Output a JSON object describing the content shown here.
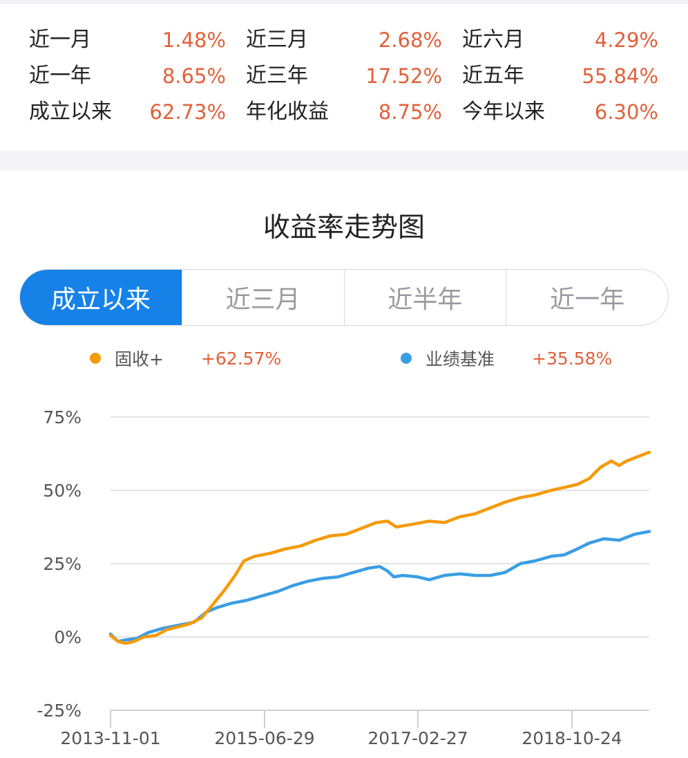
{
  "returns": [
    {
      "label": "近一月",
      "value": "1.48%"
    },
    {
      "label": "近三月",
      "value": "2.68%"
    },
    {
      "label": "近六月",
      "value": "4.29%"
    },
    {
      "label": "近一年",
      "value": "8.65%"
    },
    {
      "label": "近三年",
      "value": "17.52%"
    },
    {
      "label": "近五年",
      "value": "55.84%"
    },
    {
      "label": "成立以来",
      "value": "62.73%"
    },
    {
      "label": "年化收益",
      "value": "8.75%"
    },
    {
      "label": "今年以来",
      "value": "6.30%"
    }
  ],
  "chart_title": "收益率走势图",
  "tabs": [
    {
      "label": "成立以来",
      "active": true
    },
    {
      "label": "近三月",
      "active": false
    },
    {
      "label": "近半年",
      "active": false
    },
    {
      "label": "近一年",
      "active": false
    }
  ],
  "legend": [
    {
      "name": "固收+",
      "value": "+62.57%",
      "color": "#f59a0a"
    },
    {
      "name": "业绩基准",
      "value": "+35.58%",
      "color": "#3a9ee4"
    }
  ],
  "colors": {
    "accent": "#1682e8",
    "value_red": "#e2603a",
    "fund": "#f59a0a",
    "benchmark": "#3a9ee4"
  },
  "chart_data": {
    "type": "line",
    "title": "",
    "xlabel": "",
    "ylabel": "",
    "x_ticks": [
      "2013-11-01",
      "2015-06-29",
      "2017-02-27",
      "2018-10-24"
    ],
    "y_ticks": [
      "75%",
      "50%",
      "25%",
      "0%",
      "-25%"
    ],
    "ylim": [
      -25,
      75
    ],
    "grid": true,
    "series": [
      {
        "name": "固收+",
        "color": "#f59a0a",
        "points": [
          [
            "2013-11-01",
            0.5
          ],
          [
            "2013-12-01",
            -1.5
          ],
          [
            "2014-01-01",
            -2.2
          ],
          [
            "2014-02-01",
            -1.6
          ],
          [
            "2014-03-15",
            0.0
          ],
          [
            "2014-05-01",
            0.5
          ],
          [
            "2014-06-15",
            2.5
          ],
          [
            "2014-08-01",
            3.5
          ],
          [
            "2014-09-15",
            4.5
          ],
          [
            "2014-11-01",
            6.5
          ],
          [
            "2014-12-15",
            11.0
          ],
          [
            "2015-02-01",
            16.0
          ],
          [
            "2015-03-15",
            21.0
          ],
          [
            "2015-04-20",
            26.0
          ],
          [
            "2015-06-01",
            27.5
          ],
          [
            "2015-08-01",
            28.5
          ],
          [
            "2015-10-01",
            30.0
          ],
          [
            "2015-12-01",
            31.0
          ],
          [
            "2016-02-01",
            33.0
          ],
          [
            "2016-04-01",
            34.5
          ],
          [
            "2016-06-01",
            35.0
          ],
          [
            "2016-08-01",
            37.0
          ],
          [
            "2016-10-01",
            39.0
          ],
          [
            "2016-11-15",
            39.5
          ],
          [
            "2016-12-20",
            37.5
          ],
          [
            "2017-02-27",
            38.5
          ],
          [
            "2017-05-01",
            39.5
          ],
          [
            "2017-07-01",
            39.0
          ],
          [
            "2017-09-01",
            41.0
          ],
          [
            "2017-11-01",
            42.0
          ],
          [
            "2018-01-01",
            44.0
          ],
          [
            "2018-03-01",
            46.0
          ],
          [
            "2018-05-01",
            47.5
          ],
          [
            "2018-07-01",
            48.5
          ],
          [
            "2018-09-01",
            50.0
          ],
          [
            "2018-10-24",
            51.0
          ],
          [
            "2018-12-15",
            52.0
          ],
          [
            "2019-02-01",
            54.0
          ],
          [
            "2019-03-20",
            58.0
          ],
          [
            "2019-05-01",
            60.0
          ],
          [
            "2019-06-01",
            58.5
          ],
          [
            "2019-07-01",
            60.0
          ],
          [
            "2019-08-15",
            61.5
          ],
          [
            "2019-09-30",
            63.0
          ]
        ]
      },
      {
        "name": "业绩基准",
        "color": "#3a9ee4",
        "points": [
          [
            "2013-11-01",
            1.0
          ],
          [
            "2013-12-01",
            -1.5
          ],
          [
            "2014-01-01",
            -1.0
          ],
          [
            "2014-02-15",
            -0.5
          ],
          [
            "2014-04-01",
            1.5
          ],
          [
            "2014-06-01",
            3.0
          ],
          [
            "2014-08-01",
            4.0
          ],
          [
            "2014-10-01",
            5.0
          ],
          [
            "2014-11-20",
            8.5
          ],
          [
            "2015-01-01",
            10.0
          ],
          [
            "2015-03-01",
            11.5
          ],
          [
            "2015-05-01",
            12.5
          ],
          [
            "2015-07-01",
            14.0
          ],
          [
            "2015-09-01",
            15.5
          ],
          [
            "2015-11-01",
            17.5
          ],
          [
            "2016-01-01",
            19.0
          ],
          [
            "2016-03-01",
            20.0
          ],
          [
            "2016-05-01",
            20.5
          ],
          [
            "2016-07-01",
            22.0
          ],
          [
            "2016-09-01",
            23.5
          ],
          [
            "2016-10-15",
            24.0
          ],
          [
            "2016-11-15",
            22.5
          ],
          [
            "2016-12-10",
            20.5
          ],
          [
            "2017-01-15",
            21.0
          ],
          [
            "2017-03-15",
            20.5
          ],
          [
            "2017-05-01",
            19.5
          ],
          [
            "2017-07-01",
            21.0
          ],
          [
            "2017-09-01",
            21.5
          ],
          [
            "2017-11-01",
            21.0
          ],
          [
            "2018-01-01",
            21.0
          ],
          [
            "2018-03-01",
            22.0
          ],
          [
            "2018-05-01",
            25.0
          ],
          [
            "2018-07-01",
            26.0
          ],
          [
            "2018-09-01",
            27.5
          ],
          [
            "2018-10-24",
            28.0
          ],
          [
            "2018-12-15",
            30.0
          ],
          [
            "2019-02-01",
            32.0
          ],
          [
            "2019-04-01",
            33.5
          ],
          [
            "2019-06-01",
            33.0
          ],
          [
            "2019-08-01",
            35.0
          ],
          [
            "2019-09-30",
            36.0
          ]
        ]
      }
    ]
  }
}
